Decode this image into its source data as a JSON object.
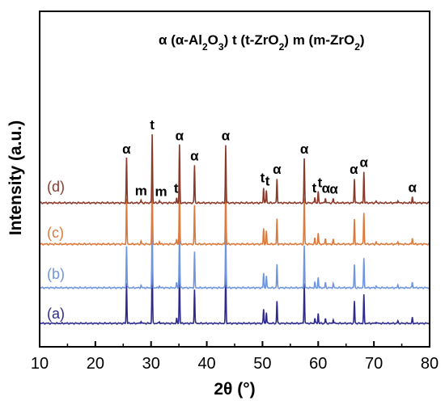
{
  "chart_data": {
    "type": "line",
    "title": "",
    "xlabel": "2θ (°)",
    "ylabel": "Intensity (a.u.)",
    "xlim": [
      10,
      80
    ],
    "x_ticks": [
      "10",
      "20",
      "30",
      "40",
      "50",
      "60",
      "70",
      "80"
    ],
    "y_ticks_shown": false,
    "grid": false,
    "legend": {
      "position": "top-right",
      "entries": [
        {
          "symbol": "α",
          "formula": [
            "α-Al",
            "2",
            "O",
            "3"
          ]
        },
        {
          "symbol": "t",
          "formula": [
            "t-ZrO",
            "2"
          ]
        },
        {
          "symbol": "m",
          "formula": [
            "m-ZrO",
            "2"
          ]
        }
      ]
    },
    "peaks": [
      {
        "x": 25.6,
        "h": 1.0,
        "phase": "α"
      },
      {
        "x": 28.2,
        "h": 0.06,
        "phase": "m"
      },
      {
        "x": 30.2,
        "h": 1.55,
        "phase": "t"
      },
      {
        "x": 31.5,
        "h": 0.05,
        "phase": "m"
      },
      {
        "x": 34.6,
        "h": 0.12,
        "phase": "t"
      },
      {
        "x": 35.1,
        "h": 1.3,
        "phase": "α"
      },
      {
        "x": 37.8,
        "h": 0.85,
        "phase": "α"
      },
      {
        "x": 43.4,
        "h": 1.3,
        "phase": "α"
      },
      {
        "x": 50.2,
        "h": 0.35,
        "phase": "t"
      },
      {
        "x": 50.7,
        "h": 0.28,
        "phase": "t"
      },
      {
        "x": 52.6,
        "h": 0.55,
        "phase": "α"
      },
      {
        "x": 57.5,
        "h": 1.0,
        "phase": "α"
      },
      {
        "x": 59.4,
        "h": 0.13,
        "phase": "t"
      },
      {
        "x": 60.0,
        "h": 0.25,
        "phase": "t"
      },
      {
        "x": 61.3,
        "h": 0.12,
        "phase": "α"
      },
      {
        "x": 62.7,
        "h": 0.1,
        "phase": "α"
      },
      {
        "x": 66.5,
        "h": 0.55,
        "phase": "α"
      },
      {
        "x": 68.2,
        "h": 0.7,
        "phase": "α"
      },
      {
        "x": 70.4,
        "h": 0.04,
        "phase": "α"
      },
      {
        "x": 74.3,
        "h": 0.06,
        "phase": "α"
      },
      {
        "x": 76.9,
        "h": 0.14,
        "phase": "α"
      }
    ],
    "peak_labels": [
      {
        "text": "α",
        "x": 25.6
      },
      {
        "text": "m",
        "x": 28.2
      },
      {
        "text": "t",
        "x": 30.2
      },
      {
        "text": "m",
        "x": 31.8
      },
      {
        "text": "t",
        "x": 34.5
      },
      {
        "text": "α",
        "x": 35.1
      },
      {
        "text": "α",
        "x": 37.8
      },
      {
        "text": "α",
        "x": 43.4
      },
      {
        "text": "t",
        "x": 50.0
      },
      {
        "text": "t",
        "x": 50.9
      },
      {
        "text": "α",
        "x": 52.6
      },
      {
        "text": "α",
        "x": 57.5
      },
      {
        "text": "t",
        "x": 59.3
      },
      {
        "text": "t",
        "x": 60.3
      },
      {
        "text": "α",
        "x": 61.4
      },
      {
        "text": "α",
        "x": 62.8
      },
      {
        "text": "α",
        "x": 66.4
      },
      {
        "text": "α",
        "x": 68.2
      },
      {
        "text": "α",
        "x": 76.9
      }
    ],
    "series": [
      {
        "name": "(a)",
        "color": "#2e2a8c"
      },
      {
        "name": "(b)",
        "color": "#6f95df"
      },
      {
        "name": "(c)",
        "color": "#dc7a3c"
      },
      {
        "name": "(d)",
        "color": "#8a3a2a"
      }
    ]
  }
}
